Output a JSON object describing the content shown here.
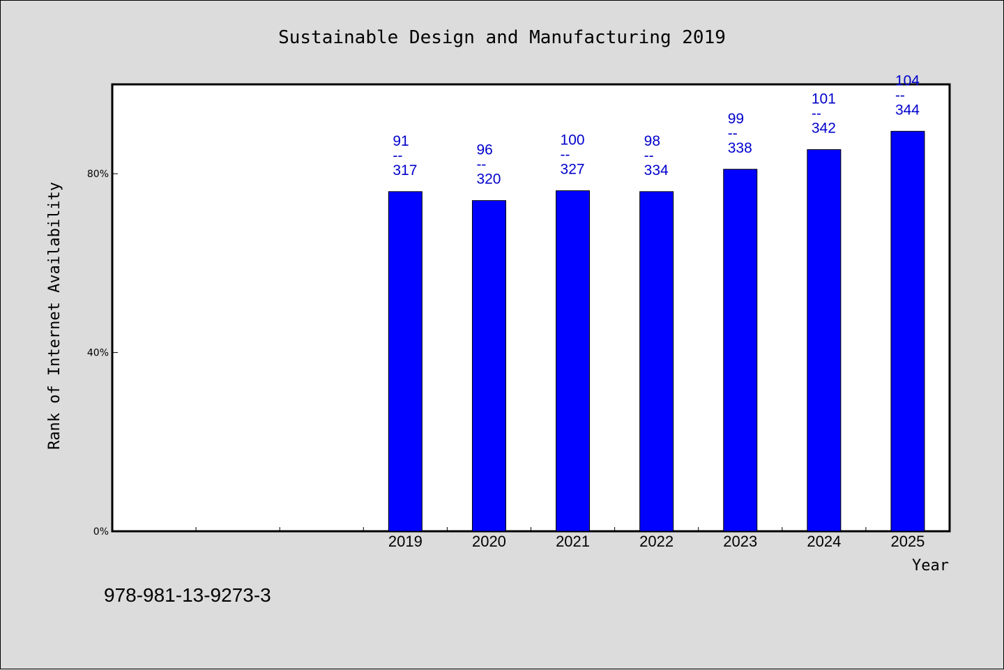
{
  "chart_data": {
    "type": "bar",
    "title": "Sustainable Design and Manufacturing 2019",
    "xlabel": "Year",
    "ylabel": "Rank of Internet Availability",
    "categories": [
      "",
      "",
      "",
      "2019",
      "2020",
      "2021",
      "2022",
      "2023",
      "2024",
      "2025"
    ],
    "values": [
      null,
      null,
      null,
      76,
      74,
      76.2,
      76,
      81,
      85.4,
      89.5
    ],
    "bar_labels": [
      null,
      null,
      null,
      {
        "top": "91",
        "sep": "--",
        "bottom": "317"
      },
      {
        "top": "96",
        "sep": "--",
        "bottom": "320"
      },
      {
        "top": "100",
        "sep": "--",
        "bottom": "327"
      },
      {
        "top": "98",
        "sep": "--",
        "bottom": "334"
      },
      {
        "top": "99",
        "sep": "--",
        "bottom": "338"
      },
      {
        "top": "101",
        "sep": "--",
        "bottom": "342"
      },
      {
        "top": "104",
        "sep": "--",
        "bottom": "344"
      }
    ],
    "y_ticks": [
      {
        "value": 0,
        "label": "0%"
      },
      {
        "value": 40,
        "label": "40%"
      },
      {
        "value": 80,
        "label": "80%"
      }
    ],
    "ylim": [
      0,
      100
    ],
    "grid": false,
    "bar_color": "#0000ff",
    "label_color": "#0000cc"
  },
  "footer": {
    "isbn": "978-981-13-9273-3"
  }
}
